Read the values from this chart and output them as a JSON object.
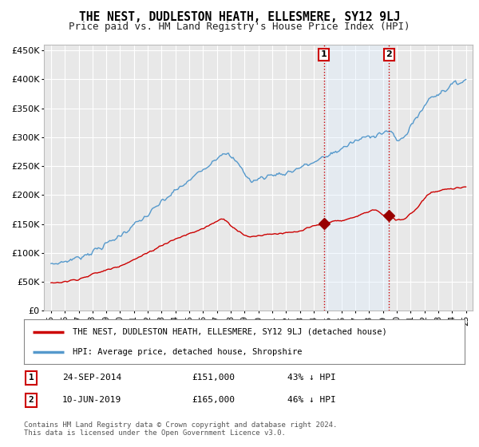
{
  "title": "THE NEST, DUDLESTON HEATH, ELLESMERE, SY12 9LJ",
  "subtitle": "Price paid vs. HM Land Registry's House Price Index (HPI)",
  "ylabel_ticks": [
    "£0",
    "£50K",
    "£100K",
    "£150K",
    "£200K",
    "£250K",
    "£300K",
    "£350K",
    "£400K",
    "£450K"
  ],
  "ytick_values": [
    0,
    50000,
    100000,
    150000,
    200000,
    250000,
    300000,
    350000,
    400000,
    450000
  ],
  "ylim": [
    0,
    460000
  ],
  "xlim_start": 1994.5,
  "xlim_end": 2025.5,
  "background_color": "#ffffff",
  "plot_bg_color": "#e8e8e8",
  "grid_color": "#ffffff",
  "hpi_line_color": "#5599cc",
  "price_line_color": "#cc0000",
  "marker_color": "#990000",
  "vline_color": "#cc0000",
  "shade_color": "#ddeeff",
  "legend_label_price": "THE NEST, DUDLESTON HEATH, ELLESMERE, SY12 9LJ (detached house)",
  "legend_label_hpi": "HPI: Average price, detached house, Shropshire",
  "transaction1_label": "1",
  "transaction1_date": "24-SEP-2014",
  "transaction1_price": "£151,000",
  "transaction1_pct": "43% ↓ HPI",
  "transaction1_x": 2014.73,
  "transaction1_y": 151000,
  "transaction2_label": "2",
  "transaction2_date": "10-JUN-2019",
  "transaction2_price": "£165,000",
  "transaction2_pct": "46% ↓ HPI",
  "transaction2_x": 2019.44,
  "transaction2_y": 165000,
  "footer": "Contains HM Land Registry data © Crown copyright and database right 2024.\nThis data is licensed under the Open Government Licence v3.0.",
  "xtick_years": [
    1995,
    1996,
    1997,
    1998,
    1999,
    2000,
    2001,
    2002,
    2003,
    2004,
    2005,
    2006,
    2007,
    2008,
    2009,
    2010,
    2011,
    2012,
    2013,
    2014,
    2015,
    2016,
    2017,
    2018,
    2019,
    2020,
    2021,
    2022,
    2023,
    2024,
    2025
  ]
}
